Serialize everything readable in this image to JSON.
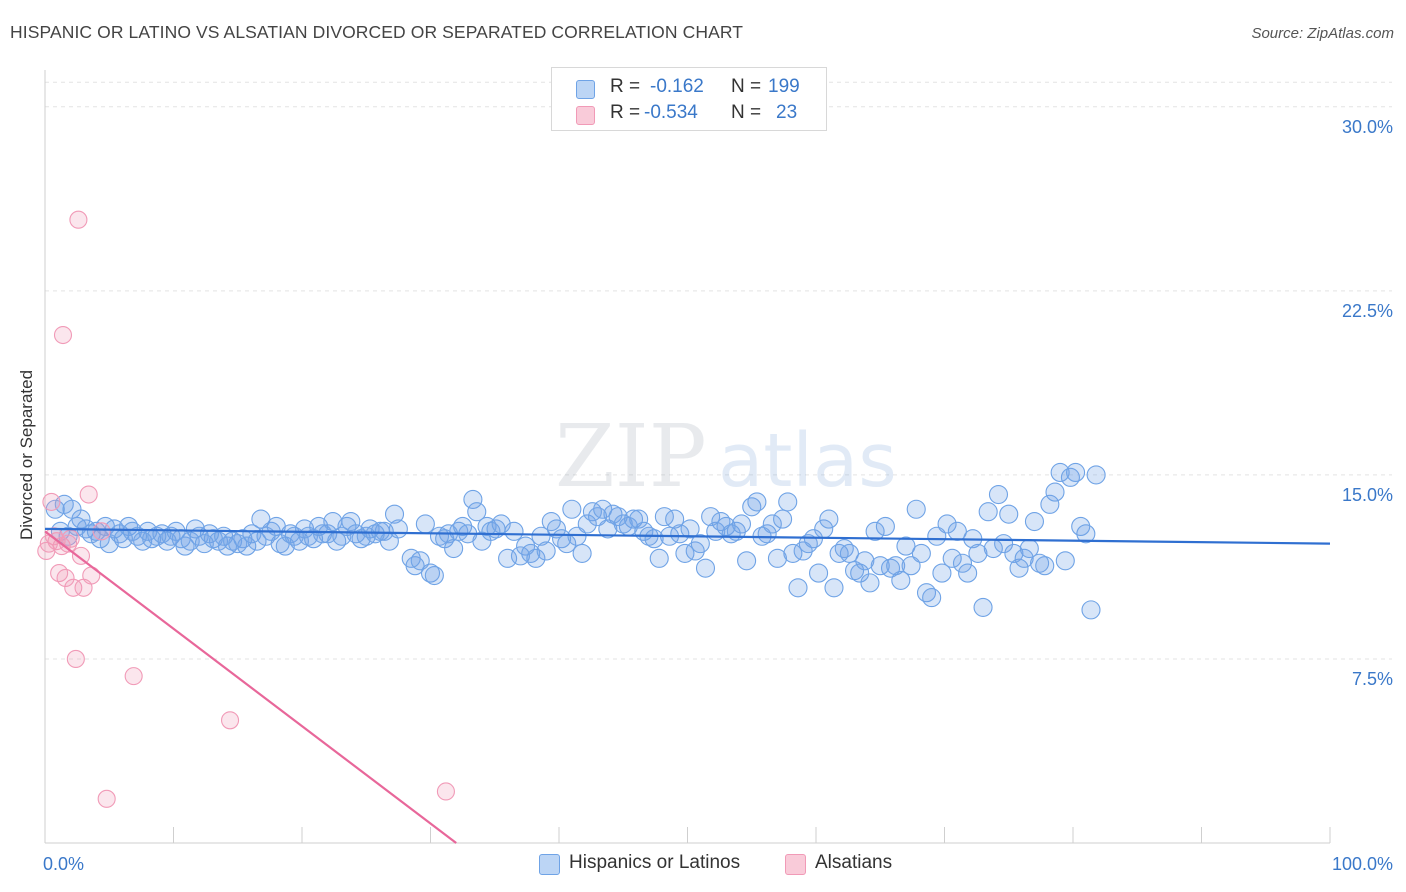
{
  "title": "HISPANIC OR LATINO VS ALSATIAN DIVORCED OR SEPARATED CORRELATION CHART",
  "source": "Source: ZipAtlas.com",
  "watermark": {
    "zip": "ZIP",
    "atlas": "atlas"
  },
  "legend": {
    "r_label": "R =",
    "n_label": "N =",
    "rows": [
      {
        "r": "-0.162",
        "n": "199",
        "color": "#6fa3e6"
      },
      {
        "r": "-0.534",
        "n": "23",
        "color": "#f19ab7"
      }
    ]
  },
  "bottom_legend": [
    {
      "label": "Hispanics or Latinos",
      "color": "#6fa3e6"
    },
    {
      "label": "Alsatians",
      "color": "#f19ab7"
    }
  ],
  "chart_data": {
    "type": "scatter",
    "xlabel": "",
    "ylabel": "Divorced or Separated",
    "xlim": [
      0,
      100
    ],
    "ylim": [
      0,
      31.5
    ],
    "x_tick_labels": [
      {
        "value": 0,
        "label": "0.0%"
      },
      {
        "value": 100,
        "label": "100.0%"
      }
    ],
    "y_ticks": [
      {
        "value": 7.5,
        "label": "7.5%"
      },
      {
        "value": 15.0,
        "label": "15.0%"
      },
      {
        "value": 22.5,
        "label": "22.5%"
      },
      {
        "value": 30.0,
        "label": "30.0%"
      }
    ],
    "series": [
      {
        "name": "Hispanics or Latinos",
        "color": "#6fa3e6",
        "line_color": "#2f6fd1",
        "trend": {
          "x": [
            0,
            100
          ],
          "y": [
            12.8,
            12.2
          ]
        },
        "points": [
          [
            0.8,
            13.6
          ],
          [
            1.2,
            12.7
          ],
          [
            1.5,
            13.8
          ],
          [
            1.8,
            12.5
          ],
          [
            2.1,
            13.6
          ],
          [
            2.5,
            12.9
          ],
          [
            2.8,
            13.2
          ],
          [
            3.2,
            12.8
          ],
          [
            3.6,
            12.6
          ],
          [
            4.0,
            12.7
          ],
          [
            4.3,
            12.4
          ],
          [
            4.7,
            12.9
          ],
          [
            5.0,
            12.2
          ],
          [
            5.4,
            12.8
          ],
          [
            5.8,
            12.6
          ],
          [
            6.1,
            12.4
          ],
          [
            6.5,
            12.9
          ],
          [
            6.8,
            12.7
          ],
          [
            7.2,
            12.5
          ],
          [
            7.6,
            12.3
          ],
          [
            8.0,
            12.7
          ],
          [
            8.3,
            12.4
          ],
          [
            8.7,
            12.5
          ],
          [
            9.1,
            12.6
          ],
          [
            9.5,
            12.3
          ],
          [
            9.8,
            12.5
          ],
          [
            10.2,
            12.7
          ],
          [
            10.6,
            12.4
          ],
          [
            10.9,
            12.1
          ],
          [
            11.3,
            12.3
          ],
          [
            11.7,
            12.8
          ],
          [
            12.0,
            12.5
          ],
          [
            12.4,
            12.2
          ],
          [
            12.8,
            12.6
          ],
          [
            13.1,
            12.4
          ],
          [
            13.5,
            12.3
          ],
          [
            13.9,
            12.5
          ],
          [
            14.2,
            12.1
          ],
          [
            14.6,
            12.3
          ],
          [
            15.0,
            12.2
          ],
          [
            15.4,
            12.4
          ],
          [
            15.7,
            12.1
          ],
          [
            16.1,
            12.6
          ],
          [
            16.5,
            12.3
          ],
          [
            16.8,
            13.2
          ],
          [
            17.2,
            12.5
          ],
          [
            17.6,
            12.7
          ],
          [
            18.0,
            12.9
          ],
          [
            18.3,
            12.2
          ],
          [
            18.7,
            12.1
          ],
          [
            19.1,
            12.6
          ],
          [
            19.4,
            12.5
          ],
          [
            19.8,
            12.3
          ],
          [
            20.2,
            12.8
          ],
          [
            20.5,
            12.5
          ],
          [
            20.9,
            12.4
          ],
          [
            21.3,
            12.9
          ],
          [
            21.6,
            12.6
          ],
          [
            22.0,
            12.6
          ],
          [
            22.4,
            13.1
          ],
          [
            22.7,
            12.3
          ],
          [
            23.1,
            12.5
          ],
          [
            23.5,
            12.9
          ],
          [
            23.8,
            13.1
          ],
          [
            24.2,
            12.6
          ],
          [
            24.6,
            12.4
          ],
          [
            25.0,
            12.5
          ],
          [
            25.3,
            12.8
          ],
          [
            25.7,
            12.6
          ],
          [
            26.1,
            12.7
          ],
          [
            26.4,
            12.7
          ],
          [
            26.8,
            12.3
          ],
          [
            27.2,
            13.4
          ],
          [
            27.5,
            12.8
          ],
          [
            28.5,
            11.6
          ],
          [
            28.8,
            11.3
          ],
          [
            29.2,
            11.5
          ],
          [
            29.6,
            13.0
          ],
          [
            30.0,
            11.0
          ],
          [
            30.3,
            10.9
          ],
          [
            30.7,
            12.5
          ],
          [
            31.1,
            12.4
          ],
          [
            31.4,
            12.6
          ],
          [
            31.8,
            12.0
          ],
          [
            32.2,
            12.7
          ],
          [
            32.5,
            12.9
          ],
          [
            32.9,
            12.6
          ],
          [
            33.3,
            14.0
          ],
          [
            33.6,
            13.5
          ],
          [
            34.0,
            12.3
          ],
          [
            34.4,
            12.9
          ],
          [
            34.7,
            12.7
          ],
          [
            35.1,
            12.8
          ],
          [
            35.5,
            13.0
          ],
          [
            36.0,
            11.6
          ],
          [
            36.5,
            12.7
          ],
          [
            37.0,
            11.7
          ],
          [
            37.4,
            12.1
          ],
          [
            37.8,
            11.8
          ],
          [
            38.2,
            11.6
          ],
          [
            38.6,
            12.5
          ],
          [
            39.0,
            11.9
          ],
          [
            39.4,
            13.1
          ],
          [
            39.8,
            12.8
          ],
          [
            40.2,
            12.4
          ],
          [
            40.6,
            12.2
          ],
          [
            41.0,
            13.6
          ],
          [
            41.4,
            12.5
          ],
          [
            41.8,
            11.8
          ],
          [
            42.2,
            13.0
          ],
          [
            42.6,
            13.5
          ],
          [
            43.0,
            13.3
          ],
          [
            43.4,
            13.6
          ],
          [
            43.8,
            12.8
          ],
          [
            44.2,
            13.4
          ],
          [
            44.6,
            13.3
          ],
          [
            45.0,
            13.0
          ],
          [
            45.4,
            12.9
          ],
          [
            45.8,
            13.2
          ],
          [
            46.2,
            13.2
          ],
          [
            46.6,
            12.7
          ],
          [
            47.0,
            12.5
          ],
          [
            47.4,
            12.4
          ],
          [
            47.8,
            11.6
          ],
          [
            48.2,
            13.3
          ],
          [
            48.6,
            12.5
          ],
          [
            49.0,
            13.2
          ],
          [
            49.4,
            12.6
          ],
          [
            49.8,
            11.8
          ],
          [
            50.2,
            12.8
          ],
          [
            50.6,
            11.9
          ],
          [
            51.0,
            12.2
          ],
          [
            51.4,
            11.2
          ],
          [
            51.8,
            13.3
          ],
          [
            52.2,
            12.7
          ],
          [
            52.6,
            13.1
          ],
          [
            53.0,
            12.9
          ],
          [
            53.4,
            12.6
          ],
          [
            53.8,
            12.7
          ],
          [
            54.2,
            13.0
          ],
          [
            54.6,
            11.5
          ],
          [
            55.0,
            13.7
          ],
          [
            55.4,
            13.9
          ],
          [
            55.8,
            12.5
          ],
          [
            56.2,
            12.6
          ],
          [
            56.6,
            13.0
          ],
          [
            57.0,
            11.6
          ],
          [
            57.4,
            13.2
          ],
          [
            57.8,
            13.9
          ],
          [
            58.2,
            11.8
          ],
          [
            58.6,
            10.4
          ],
          [
            59.0,
            11.9
          ],
          [
            59.4,
            12.2
          ],
          [
            59.8,
            12.4
          ],
          [
            60.2,
            11.0
          ],
          [
            60.6,
            12.8
          ],
          [
            61.0,
            13.2
          ],
          [
            61.4,
            10.4
          ],
          [
            61.8,
            11.8
          ],
          [
            62.2,
            12.0
          ],
          [
            62.6,
            11.8
          ],
          [
            63.0,
            11.1
          ],
          [
            63.4,
            11.0
          ],
          [
            63.8,
            11.5
          ],
          [
            64.2,
            10.6
          ],
          [
            64.6,
            12.7
          ],
          [
            65.0,
            11.3
          ],
          [
            65.4,
            12.9
          ],
          [
            65.8,
            11.2
          ],
          [
            66.2,
            11.3
          ],
          [
            66.6,
            10.7
          ],
          [
            67.0,
            12.1
          ],
          [
            67.4,
            11.3
          ],
          [
            67.8,
            13.6
          ],
          [
            68.2,
            11.8
          ],
          [
            68.6,
            10.2
          ],
          [
            69.0,
            10.0
          ],
          [
            69.4,
            12.5
          ],
          [
            69.8,
            11.0
          ],
          [
            70.2,
            13.0
          ],
          [
            70.6,
            11.6
          ],
          [
            71.0,
            12.7
          ],
          [
            71.4,
            11.4
          ],
          [
            71.8,
            11.0
          ],
          [
            72.2,
            12.4
          ],
          [
            72.6,
            11.8
          ],
          [
            73.0,
            9.6
          ],
          [
            73.4,
            13.5
          ],
          [
            73.8,
            12.0
          ],
          [
            74.2,
            14.2
          ],
          [
            74.6,
            12.2
          ],
          [
            75.0,
            13.4
          ],
          [
            75.4,
            11.8
          ],
          [
            75.8,
            11.2
          ],
          [
            76.2,
            11.6
          ],
          [
            76.6,
            12.0
          ],
          [
            77.0,
            13.1
          ],
          [
            77.4,
            11.4
          ],
          [
            77.8,
            11.3
          ],
          [
            78.2,
            13.8
          ],
          [
            78.6,
            14.3
          ],
          [
            79.0,
            15.1
          ],
          [
            79.4,
            11.5
          ],
          [
            79.8,
            14.9
          ],
          [
            80.2,
            15.1
          ],
          [
            80.6,
            12.9
          ],
          [
            81.0,
            12.6
          ],
          [
            81.4,
            9.5
          ],
          [
            81.8,
            15.0
          ]
        ]
      },
      {
        "name": "Alsatians",
        "color": "#f19ab7",
        "line_color": "#e8679a",
        "trend": {
          "x": [
            0,
            32
          ],
          "y": [
            12.7,
            0
          ]
        },
        "points": [
          [
            0.1,
            11.9
          ],
          [
            0.3,
            12.2
          ],
          [
            0.5,
            13.9
          ],
          [
            0.7,
            12.5
          ],
          [
            0.9,
            12.3
          ],
          [
            1.1,
            11.0
          ],
          [
            1.3,
            12.1
          ],
          [
            1.4,
            20.7
          ],
          [
            1.6,
            10.8
          ],
          [
            1.8,
            12.2
          ],
          [
            2.0,
            12.4
          ],
          [
            2.2,
            10.4
          ],
          [
            2.4,
            7.5
          ],
          [
            2.6,
            25.4
          ],
          [
            2.8,
            11.7
          ],
          [
            3.0,
            10.4
          ],
          [
            3.4,
            14.2
          ],
          [
            3.6,
            10.9
          ],
          [
            4.4,
            12.7
          ],
          [
            4.8,
            1.8
          ],
          [
            6.9,
            6.8
          ],
          [
            14.4,
            5.0
          ],
          [
            31.2,
            2.1
          ]
        ]
      }
    ]
  }
}
